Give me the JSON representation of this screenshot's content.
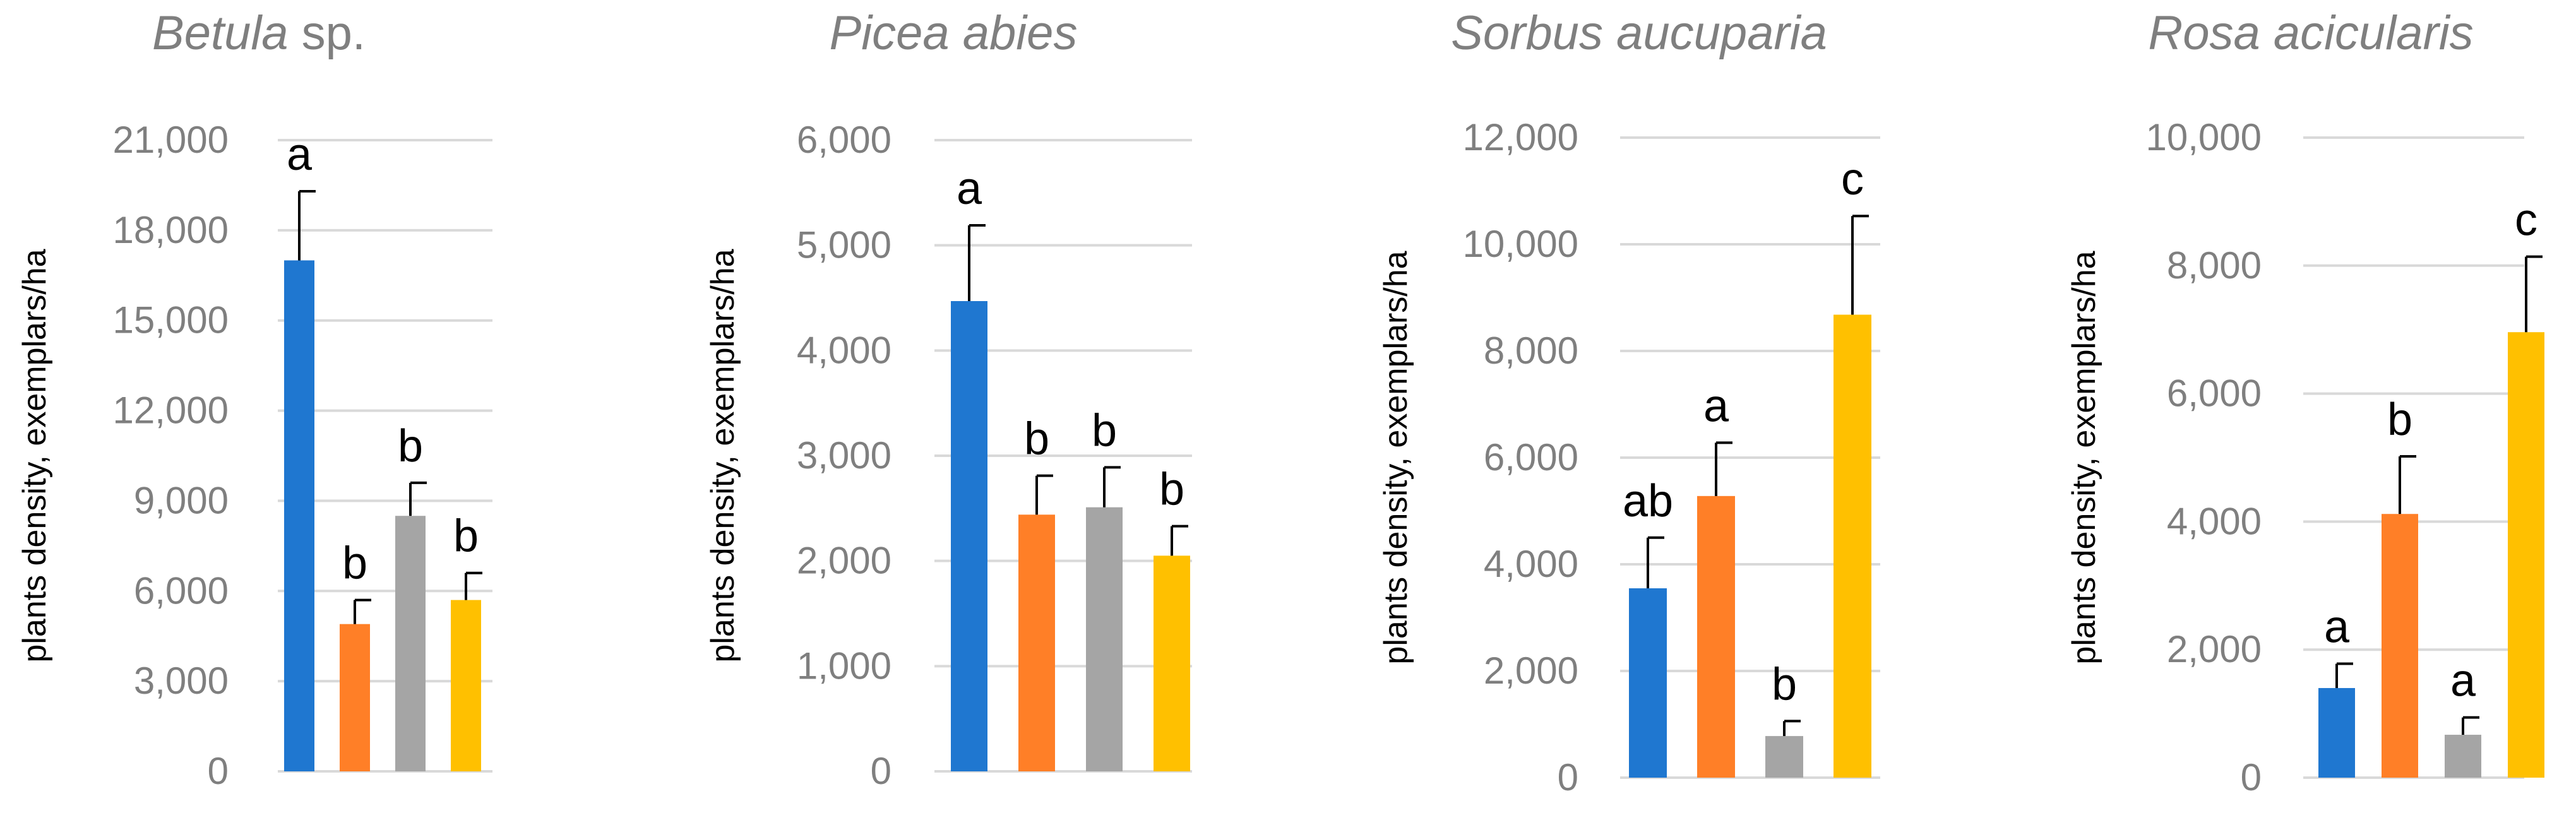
{
  "chart_data": [
    {
      "type": "bar",
      "title_italic": "Betula",
      "title_rest": " sp.",
      "ylabel": "plants density, exemplars/ha",
      "ylim": [
        0,
        21000
      ],
      "yticks": [
        "0",
        "3,000",
        "6,000",
        "9,000",
        "12,000",
        "15,000",
        "18,000",
        "21,000"
      ],
      "tick_values": [
        0,
        3000,
        6000,
        9000,
        12000,
        15000,
        18000,
        21000
      ],
      "values": [
        17000,
        4900,
        8500,
        5700
      ],
      "errors": [
        2300,
        800,
        1100,
        900
      ],
      "labels": [
        "a",
        "b",
        "b",
        "b"
      ],
      "colors": [
        "#1f77d0",
        "#ff7f27",
        "#a5a5a5",
        "#ffc000"
      ],
      "grid": true
    },
    {
      "type": "bar",
      "title_italic": "Picea abies",
      "title_rest": "",
      "ylabel": "plants density, exemplars/ha",
      "ylim": [
        0,
        6000
      ],
      "yticks": [
        "0",
        "1,000",
        "2,000",
        "3,000",
        "4,000",
        "5,000",
        "6,000"
      ],
      "tick_values": [
        0,
        1000,
        2000,
        3000,
        4000,
        5000,
        6000
      ],
      "values": [
        4470,
        2440,
        2510,
        2050
      ],
      "errors": [
        720,
        370,
        380,
        280
      ],
      "labels": [
        "a",
        "b",
        "b",
        "b"
      ],
      "colors": [
        "#1f77d0",
        "#ff7f27",
        "#a5a5a5",
        "#ffc000"
      ],
      "grid": true
    },
    {
      "type": "bar",
      "title_italic": "Sorbus aucuparia",
      "title_rest": "",
      "ylabel": "plants density, exemplars/ha",
      "ylim": [
        0,
        12000
      ],
      "yticks": [
        "0",
        "2,000",
        "4,000",
        "6,000",
        "8,000",
        "10,000",
        "12,000"
      ],
      "tick_values": [
        0,
        2000,
        4000,
        6000,
        8000,
        10000,
        12000
      ],
      "values": [
        3550,
        5280,
        780,
        8680
      ],
      "errors": [
        950,
        1000,
        280,
        1850
      ],
      "labels": [
        "ab",
        "a",
        "b",
        "c"
      ],
      "colors": [
        "#1f77d0",
        "#ff7f27",
        "#a5a5a5",
        "#ffc000"
      ],
      "grid": true
    },
    {
      "type": "bar",
      "title_italic": "Rosa acicularis",
      "title_rest": "",
      "ylabel": "plants density, exemplars/ha",
      "ylim": [
        0,
        10000
      ],
      "yticks": [
        "0",
        "2,000",
        "4,000",
        "6,000",
        "8,000",
        "10,000"
      ],
      "tick_values": [
        0,
        2000,
        4000,
        6000,
        8000,
        10000
      ],
      "values": [
        1400,
        4120,
        670,
        6960
      ],
      "errors": [
        380,
        900,
        270,
        1180
      ],
      "labels": [
        "a",
        "b",
        "a",
        "c"
      ],
      "colors": [
        "#1f77d0",
        "#ff7f27",
        "#a5a5a5",
        "#ffc000"
      ],
      "grid": true
    }
  ]
}
